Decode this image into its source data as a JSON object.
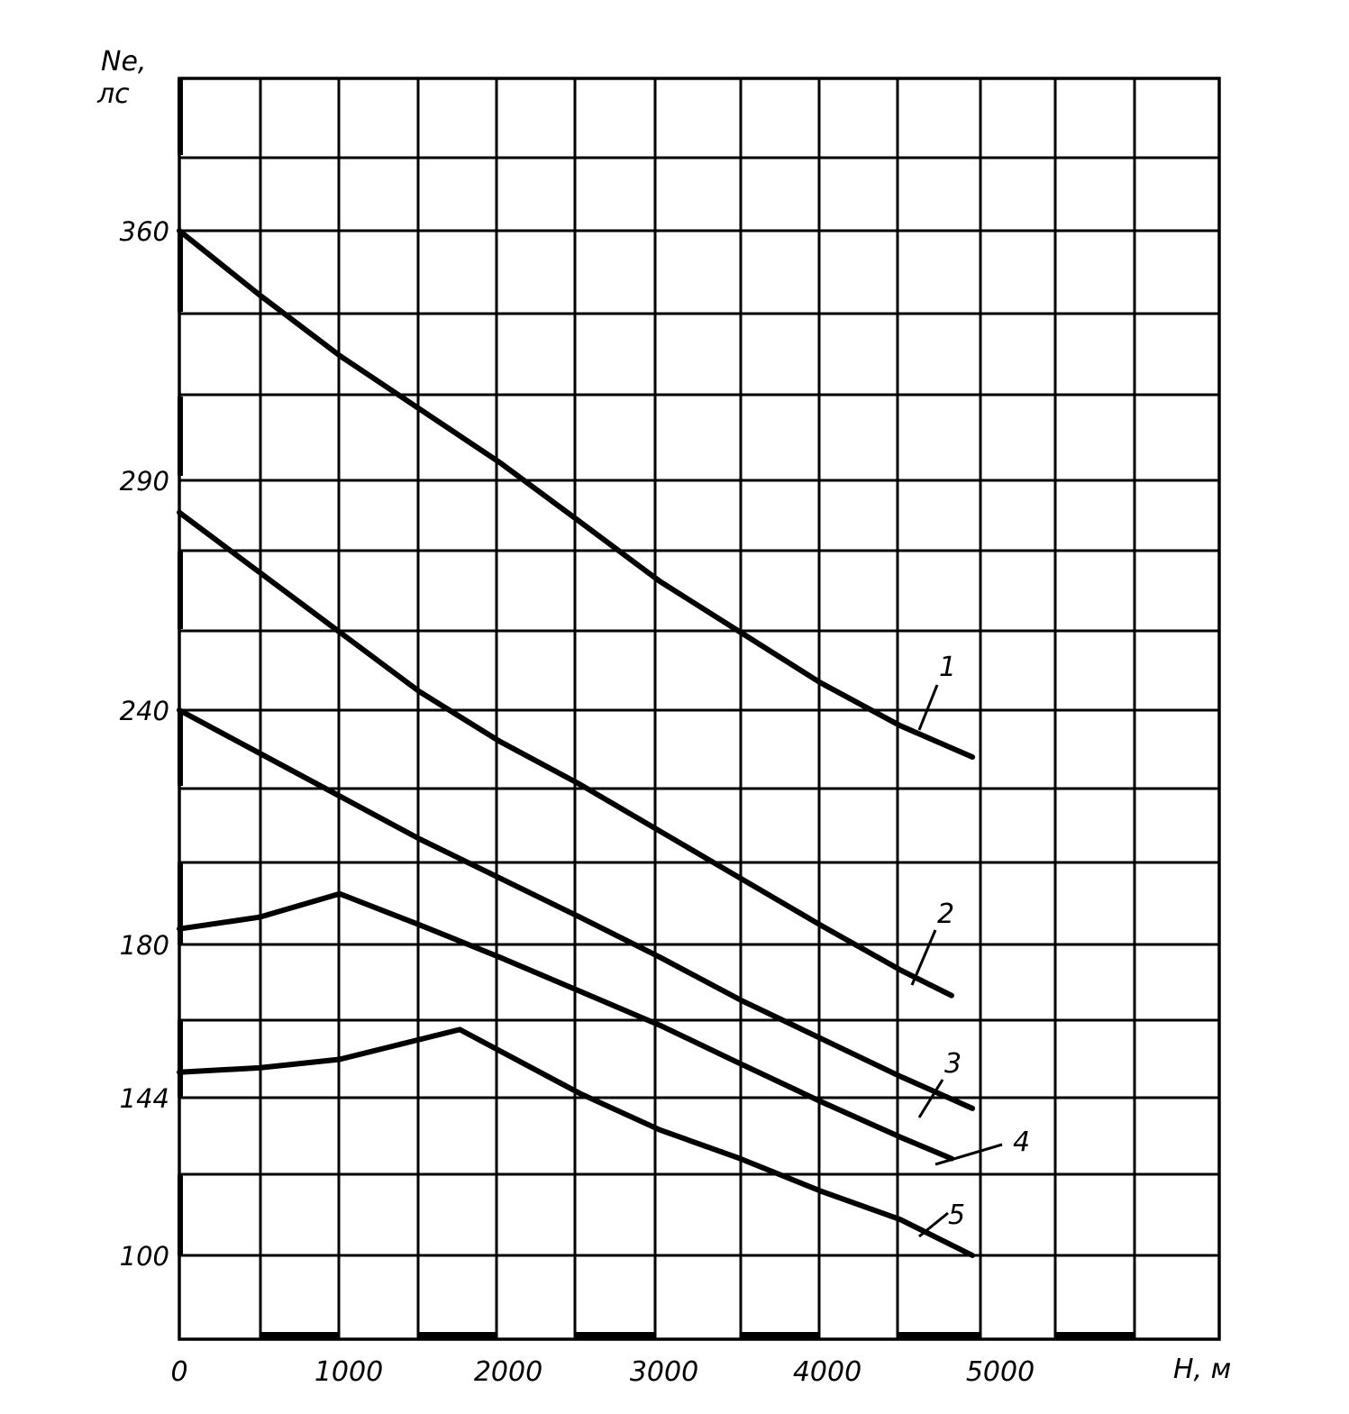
{
  "chart_data": {
    "type": "line",
    "title": "",
    "ylabel": [
      "Ne,",
      "лс"
    ],
    "xlabel": "Н, м",
    "x_ticks": [
      "0",
      "1000",
      "2000",
      "3000",
      "4000",
      "5000"
    ],
    "y_ticks": [
      "360",
      "290",
      "240",
      "180",
      "144",
      "100"
    ],
    "grid": true,
    "series": [
      {
        "name": "1",
        "x": [
          0,
          500,
          1000,
          1500,
          2000,
          2500,
          3000,
          3500,
          4000,
          4500,
          4950
        ],
        "y": [
          360,
          342,
          325,
          310,
          295,
          281,
          268,
          257,
          246,
          236,
          228
        ]
      },
      {
        "name": "2",
        "x": [
          0,
          500,
          1000,
          1500,
          2000,
          2500,
          3000,
          3500,
          4000,
          4500,
          4820
        ],
        "y": [
          283,
          270,
          257,
          244,
          232,
          221,
          209,
          197,
          185,
          174,
          168
        ]
      },
      {
        "name": "3",
        "x": [
          0,
          500,
          1000,
          1500,
          2000,
          2500,
          3000,
          3500,
          4000,
          4500,
          4950
        ],
        "y": [
          240,
          229,
          218,
          207,
          197,
          187,
          177,
          167,
          158,
          149,
          141
        ]
      },
      {
        "name": "4",
        "x": [
          0,
          500,
          1000,
          1500,
          2000,
          2500,
          3000,
          3500,
          4000,
          4500,
          4820
        ],
        "y": [
          184,
          187,
          193,
          185,
          177,
          169,
          161,
          152,
          143,
          133,
          127
        ]
      },
      {
        "name": "5",
        "x": [
          0,
          500,
          1000,
          1750,
          2500,
          3000,
          3500,
          4000,
          4500,
          4950
        ],
        "y": [
          150,
          151,
          153,
          160,
          145,
          135,
          127,
          118,
          110,
          100
        ]
      }
    ]
  }
}
